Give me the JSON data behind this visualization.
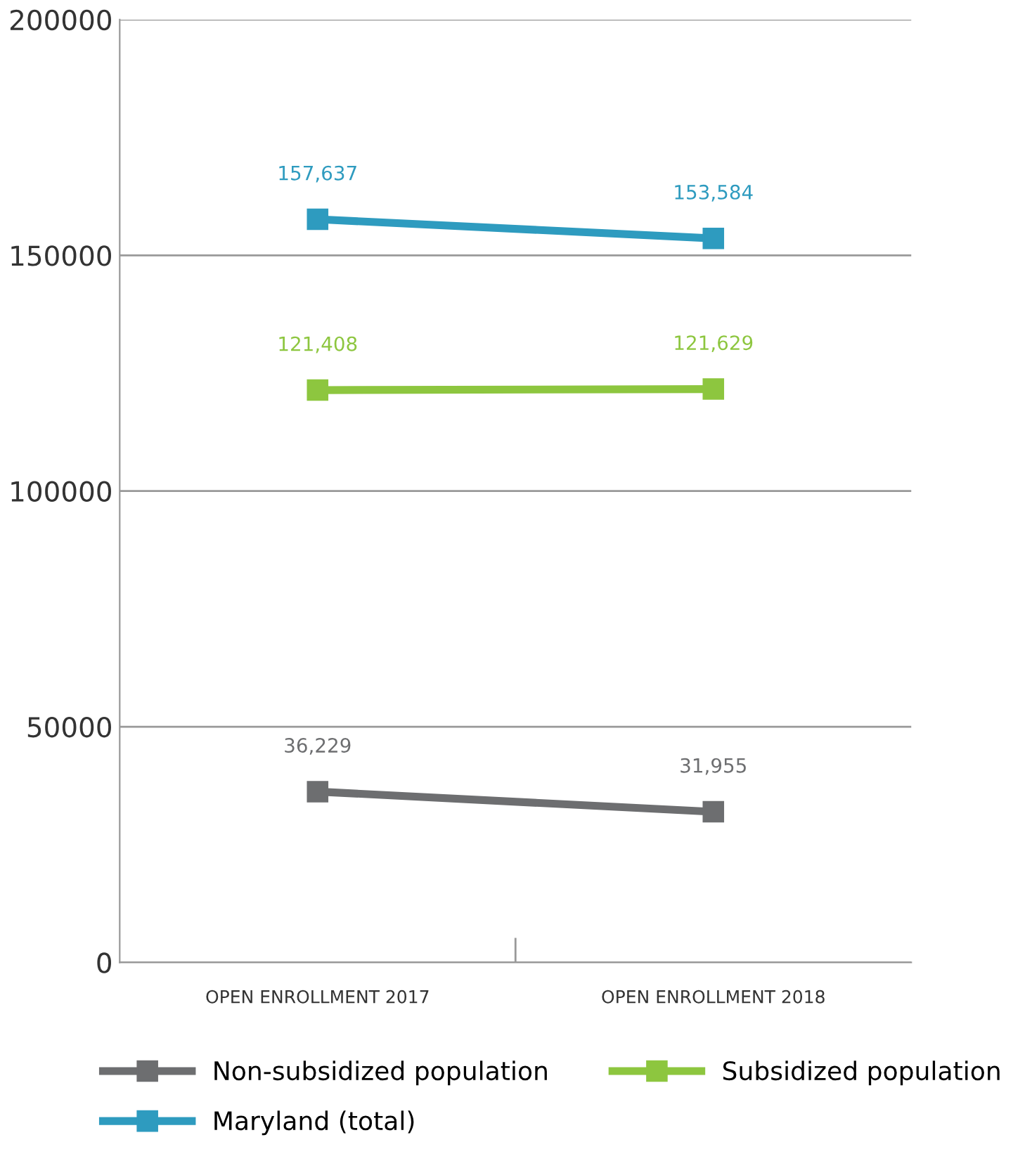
{
  "chart_data": {
    "type": "line",
    "categories": [
      "OPEN ENROLLMENT 2017",
      "OPEN ENROLLMENT 2018"
    ],
    "series": [
      {
        "name": "Non-subsidized population",
        "color": "#6d6e70",
        "values": [
          36229,
          31955
        ],
        "value_labels": [
          "36,229",
          "31,955"
        ]
      },
      {
        "name": "Subsidized population",
        "color": "#8dc63f",
        "values": [
          121408,
          121629
        ],
        "value_labels": [
          "121,408",
          "121,629"
        ]
      },
      {
        "name": "Maryland (total)",
        "color": "#2e9bbf",
        "values": [
          157637,
          153584
        ],
        "value_labels": [
          "157,637",
          "153,584"
        ]
      }
    ],
    "ylim": [
      0,
      200000
    ],
    "yticks": [
      0,
      50000,
      100000,
      150000,
      200000
    ],
    "grid": "y",
    "legend": "bottom",
    "marker": "square",
    "line_style": "solid"
  }
}
